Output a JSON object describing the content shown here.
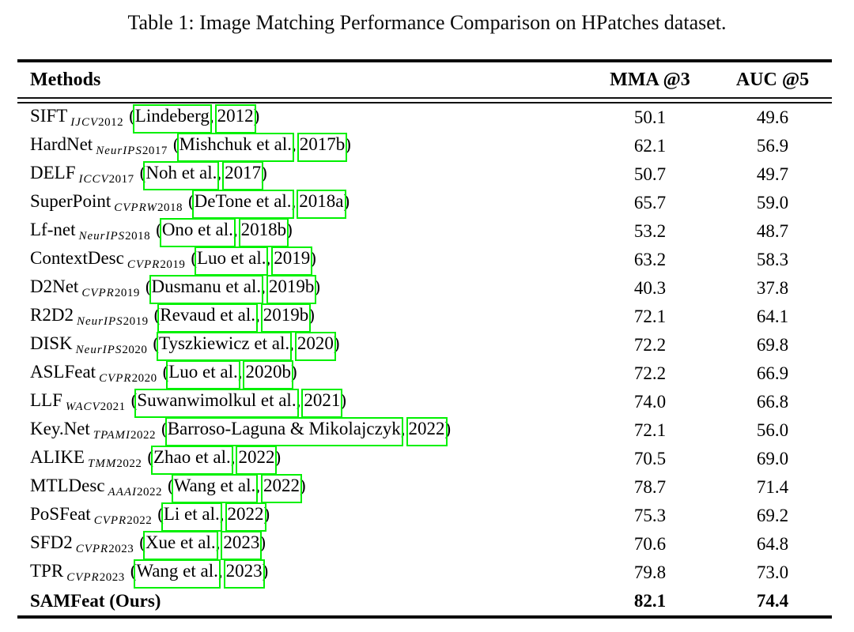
{
  "page": {
    "title": "Table 1: Image Matching Performance Comparison on HPatches dataset."
  },
  "table": {
    "headers": {
      "method": "Methods",
      "mma": "MMA @3",
      "auc": "AUC @5"
    },
    "link_box_color": "#00f000",
    "rows": [
      {
        "method": "SIFT",
        "venue": "IJCV",
        "venue_year": "2012",
        "authors": "Lindeberg",
        "cite_year": "2012",
        "mma": "50.1",
        "auc": "49.6",
        "bold": false
      },
      {
        "method": "HardNet",
        "venue": "NeurIPS",
        "venue_year": "2017",
        "authors": "Mishchuk et al.",
        "cite_year": "2017b",
        "mma": "62.1",
        "auc": "56.9",
        "bold": false
      },
      {
        "method": "DELF",
        "venue": "ICCV",
        "venue_year": "2017",
        "authors": "Noh et al.",
        "cite_year": "2017",
        "mma": "50.7",
        "auc": "49.7",
        "bold": false
      },
      {
        "method": "SuperPoint",
        "venue": "CVPRW",
        "venue_year": "2018",
        "authors": "DeTone et al.",
        "cite_year": "2018a",
        "mma": "65.7",
        "auc": "59.0",
        "bold": false
      },
      {
        "method": "Lf-net",
        "venue": "NeurIPS",
        "venue_year": "2018",
        "authors": "Ono et al.",
        "cite_year": "2018b",
        "mma": "53.2",
        "auc": "48.7",
        "bold": false
      },
      {
        "method": "ContextDesc",
        "venue": "CVPR",
        "venue_year": "2019",
        "authors": "Luo et al.",
        "cite_year": "2019",
        "mma": "63.2",
        "auc": "58.3",
        "bold": false
      },
      {
        "method": "D2Net",
        "venue": "CVPR",
        "venue_year": "2019",
        "authors": "Dusmanu et al.",
        "cite_year": "2019b",
        "mma": "40.3",
        "auc": "37.8",
        "bold": false
      },
      {
        "method": "R2D2",
        "venue": "NeurIPS",
        "venue_year": "2019",
        "authors": "Revaud et al.",
        "cite_year": "2019b",
        "mma": "72.1",
        "auc": "64.1",
        "bold": false
      },
      {
        "method": "DISK",
        "venue": "NeurIPS",
        "venue_year": "2020",
        "authors": "Tyszkiewicz et al.",
        "cite_year": "2020",
        "mma": "72.2",
        "auc": "69.8",
        "bold": false
      },
      {
        "method": "ASLFeat",
        "venue": "CVPR",
        "venue_year": "2020",
        "authors": "Luo et al.",
        "cite_year": "2020b",
        "mma": "72.2",
        "auc": "66.9",
        "bold": false
      },
      {
        "method": "LLF",
        "venue": "WACV",
        "venue_year": "2021",
        "authors": "Suwanwimolkul et al.",
        "cite_year": "2021",
        "mma": "74.0",
        "auc": "66.8",
        "bold": false
      },
      {
        "method": "Key.Net",
        "venue": "TPAMI",
        "venue_year": "2022",
        "authors": "Barroso-Laguna & Mikolajczyk",
        "cite_year": "2022",
        "mma": "72.1",
        "auc": "56.0",
        "bold": false
      },
      {
        "method": "ALIKE",
        "venue": "TMM",
        "venue_year": "2022",
        "authors": "Zhao et al.",
        "cite_year": "2022",
        "mma": "70.5",
        "auc": "69.0",
        "bold": false
      },
      {
        "method": "MTLDesc",
        "venue": "AAAI",
        "venue_year": "2022",
        "authors": "Wang et al.",
        "cite_year": "2022",
        "mma": "78.7",
        "auc": "71.4",
        "bold": false
      },
      {
        "method": "PoSFeat",
        "venue": "CVPR",
        "venue_year": "2022",
        "authors": "Li et al.",
        "cite_year": "2022",
        "mma": "75.3",
        "auc": "69.2",
        "bold": false
      },
      {
        "method": "SFD2",
        "venue": "CVPR",
        "venue_year": "2023",
        "authors": "Xue et al.",
        "cite_year": "2023",
        "mma": "70.6",
        "auc": "64.8",
        "bold": false
      },
      {
        "method": "TPR",
        "venue": "CVPR",
        "venue_year": "2023",
        "authors": "Wang et al.",
        "cite_year": "2023",
        "mma": "79.8",
        "auc": "73.0",
        "bold": false
      },
      {
        "method": "SAMFeat (Ours)",
        "venue": "",
        "venue_year": "",
        "authors": "",
        "cite_year": "",
        "mma": "82.1",
        "auc": "74.4",
        "bold": true
      }
    ]
  },
  "chart_data": {
    "type": "table",
    "title": "Table 1: Image Matching Performance Comparison on HPatches dataset.",
    "columns": [
      "Methods",
      "MMA @3",
      "AUC @5"
    ],
    "categories": [
      "SIFT",
      "HardNet",
      "DELF",
      "SuperPoint",
      "Lf-net",
      "ContextDesc",
      "D2Net",
      "R2D2",
      "DISK",
      "ASLFeat",
      "LLF",
      "Key.Net",
      "ALIKE",
      "MTLDesc",
      "PoSFeat",
      "SFD2",
      "TPR",
      "SAMFeat (Ours)"
    ],
    "series": [
      {
        "name": "MMA @3",
        "values": [
          50.1,
          62.1,
          50.7,
          65.7,
          53.2,
          63.2,
          40.3,
          72.1,
          72.2,
          72.2,
          74.0,
          72.1,
          70.5,
          78.7,
          75.3,
          70.6,
          79.8,
          82.1
        ]
      },
      {
        "name": "AUC @5",
        "values": [
          49.6,
          56.9,
          49.7,
          59.0,
          48.7,
          58.3,
          37.8,
          64.1,
          69.8,
          66.9,
          66.8,
          56.0,
          69.0,
          71.4,
          69.2,
          64.8,
          73.0,
          74.4
        ]
      }
    ]
  }
}
